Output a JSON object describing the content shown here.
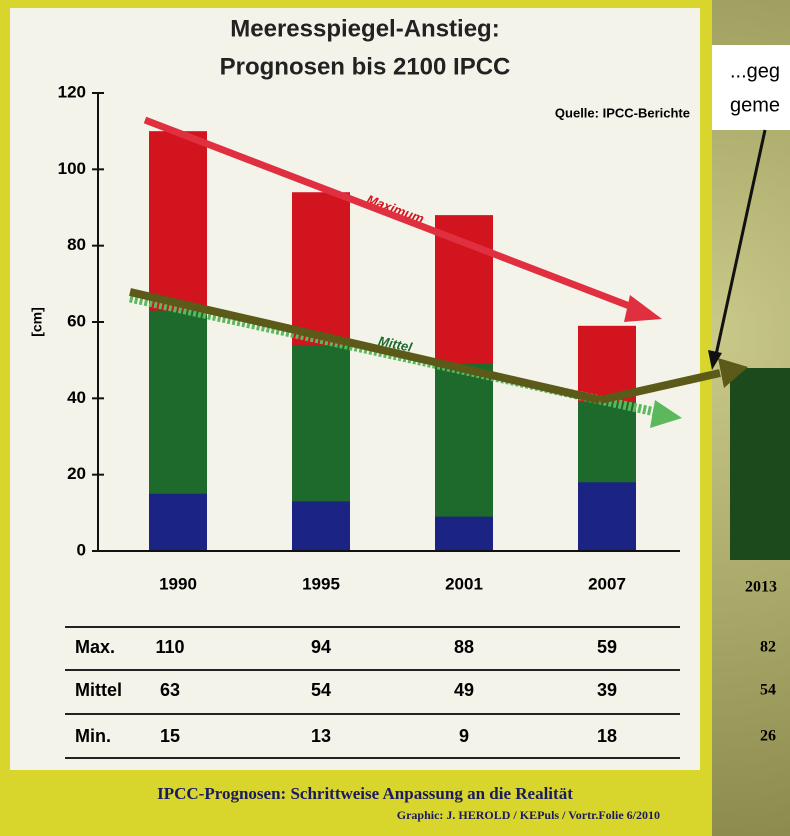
{
  "chart_data": {
    "type": "bar",
    "title": "Meeresspiegel-Anstieg:",
    "subtitle": "Prognosen bis 2100 IPCC",
    "source": "Quelle: IPCC-Berichte",
    "y_label": "[cm]",
    "annotations": [
      "Maximum",
      "Mittel"
    ],
    "categories": [
      "1990",
      "1995",
      "2001",
      "2007"
    ],
    "series": [
      {
        "name": "Max.",
        "color": "#d2141e",
        "values": [
          110,
          94,
          88,
          59
        ]
      },
      {
        "name": "Mittel",
        "color": "#1d6a2c",
        "values": [
          63,
          54,
          49,
          39
        ]
      },
      {
        "name": "Min.",
        "color": "#1b2383",
        "values": [
          15,
          13,
          9,
          18
        ]
      }
    ],
    "ylim": [
      0,
      120
    ],
    "yticks": [
      0,
      20,
      40,
      60,
      80,
      100,
      120
    ],
    "footer": "IPCC-Prognosen: Schrittweise Anpassung an die Realität",
    "credit": "Graphic: J. HEROLD / KEPuls / Vortr.Folie 6/2010"
  },
  "side_panel": {
    "note_lines": [
      "...geg",
      "geme"
    ],
    "category": "2013",
    "values": [
      82,
      54,
      26
    ]
  }
}
